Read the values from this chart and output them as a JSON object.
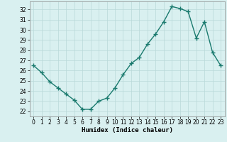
{
  "x": [
    0,
    1,
    2,
    3,
    4,
    5,
    6,
    7,
    8,
    9,
    10,
    11,
    12,
    13,
    14,
    15,
    16,
    17,
    18,
    19,
    20,
    21,
    22,
    23
  ],
  "y": [
    26.5,
    25.8,
    24.9,
    24.3,
    23.7,
    23.1,
    22.2,
    22.2,
    23.0,
    23.3,
    24.3,
    25.6,
    26.7,
    27.3,
    28.6,
    29.6,
    30.8,
    32.3,
    32.1,
    31.8,
    29.2,
    30.8,
    27.8,
    26.5
  ],
  "line_color": "#1a7a6e",
  "marker": "+",
  "markersize": 4,
  "linewidth": 1.0,
  "bg_color": "#d9f0f0",
  "grid_color": "#b8d8d8",
  "xlabel": "Humidex (Indice chaleur)",
  "xlim": [
    -0.5,
    23.5
  ],
  "ylim": [
    21.5,
    32.8
  ],
  "yticks": [
    22,
    23,
    24,
    25,
    26,
    27,
    28,
    29,
    30,
    31,
    32
  ],
  "xticks": [
    0,
    1,
    2,
    3,
    4,
    5,
    6,
    7,
    8,
    9,
    10,
    11,
    12,
    13,
    14,
    15,
    16,
    17,
    18,
    19,
    20,
    21,
    22,
    23
  ],
  "tick_fontsize": 5.5,
  "xlabel_fontsize": 6.5
}
